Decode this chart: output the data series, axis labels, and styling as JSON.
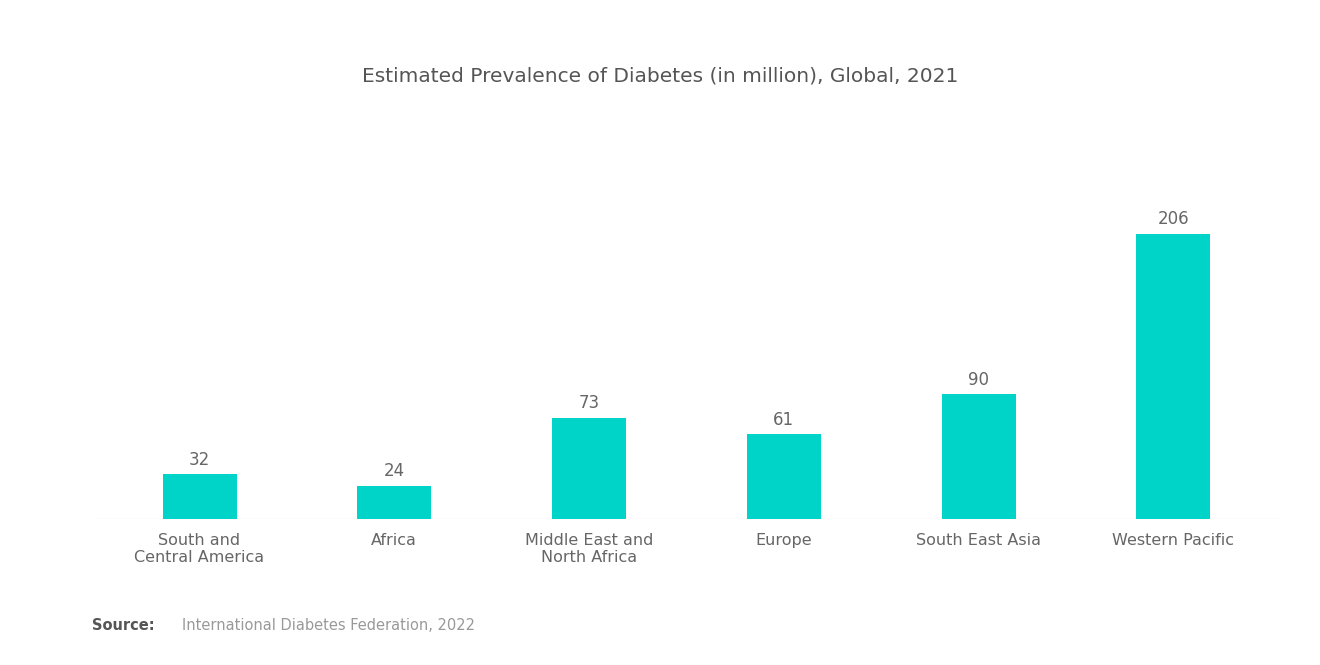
{
  "title": "Estimated Prevalence of Diabetes (in million), Global, 2021",
  "categories": [
    "South and\nCentral America",
    "Africa",
    "Middle East and\nNorth Africa",
    "Europe",
    "South East Asia",
    "Western Pacific"
  ],
  "values": [
    32,
    24,
    73,
    61,
    90,
    206
  ],
  "bar_color": "#00D4C8",
  "background_color": "#ffffff",
  "title_fontsize": 14.5,
  "label_fontsize": 11.5,
  "value_fontsize": 12,
  "source_bold": "Source:",
  "source_normal": "  International Diabetes Federation, 2022",
  "ylim": [
    0,
    250
  ],
  "bar_width": 0.38
}
